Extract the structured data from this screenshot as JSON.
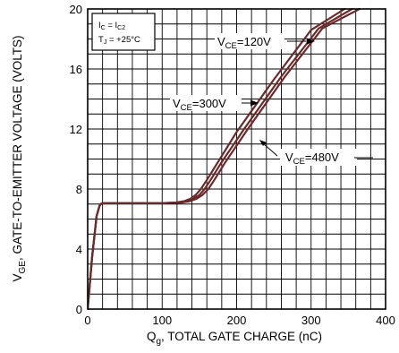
{
  "chart_data": {
    "type": "line",
    "title": "",
    "xlabel": "Q",
    "xlabel_sub": "g",
    "xlabel_rest": ", TOTAL GATE CHARGE (nC)",
    "ylabel": "V",
    "ylabel_sub": "GE",
    "ylabel_rest": ", GATE-TO-EMITTER VOLTAGE (VOLTS)",
    "xlim": [
      0,
      400
    ],
    "ylim": [
      0,
      20
    ],
    "xticks": [
      "0",
      "100",
      "200",
      "300",
      "400"
    ],
    "yticks": [
      "0",
      "4",
      "8",
      "12",
      "16",
      "20"
    ],
    "grid": true,
    "curve_color": "#6b2a2a",
    "conditions": {
      "line1_a": "I",
      "line1_a_sub": "C",
      "line1_b": " = I",
      "line1_b_sub": "C2",
      "line2_a": "T",
      "line2_a_sub": "J",
      "line2_b": " = +25°C"
    },
    "series": [
      {
        "name": "V_CE=120V",
        "label_main": "V",
        "label_sub": "CE",
        "label_rest": "=120V",
        "x": [
          0,
          6,
          12,
          16,
          18,
          20,
          24,
          60,
          100,
          118,
          130,
          138,
          145,
          152,
          160,
          175,
          200,
          250,
          300,
          345
        ],
        "y": [
          0,
          3.5,
          6.2,
          6.9,
          7.02,
          7.05,
          7.05,
          7.05,
          7.06,
          7.1,
          7.2,
          7.35,
          7.6,
          8.0,
          8.6,
          9.8,
          11.8,
          15.3,
          18.6,
          20.0
        ]
      },
      {
        "name": "V_CE=300V",
        "label_main": "V",
        "label_sub": "CE",
        "label_rest": "=300V",
        "x": [
          0,
          6,
          12,
          16,
          18,
          20,
          24,
          60,
          100,
          122,
          134,
          142,
          150,
          157,
          165,
          180,
          210,
          260,
          310,
          355
        ],
        "y": [
          0,
          3.5,
          6.2,
          6.9,
          7.02,
          7.05,
          7.05,
          7.05,
          7.06,
          7.1,
          7.2,
          7.35,
          7.6,
          8.0,
          8.6,
          9.8,
          12.0,
          15.5,
          18.7,
          20.0
        ]
      },
      {
        "name": "V_CE=480V",
        "label_main": "V",
        "label_sub": "CE",
        "label_rest": "=480V",
        "x": [
          0,
          6,
          12,
          16,
          18,
          20,
          24,
          60,
          100,
          126,
          138,
          146,
          154,
          162,
          170,
          185,
          215,
          265,
          315,
          365
        ],
        "y": [
          0,
          3.5,
          6.2,
          6.9,
          7.02,
          7.05,
          7.05,
          7.05,
          7.06,
          7.1,
          7.2,
          7.35,
          7.6,
          8.0,
          8.6,
          9.8,
          12.0,
          15.5,
          18.7,
          20.0
        ]
      }
    ]
  }
}
